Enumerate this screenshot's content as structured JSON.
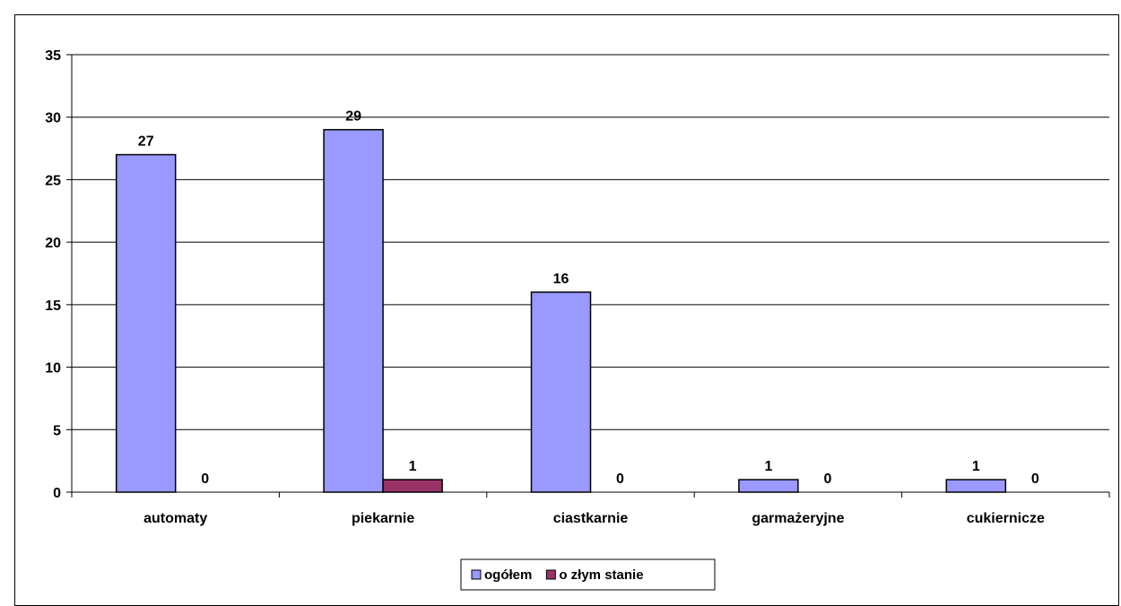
{
  "chart_data": {
    "type": "bar",
    "title": "",
    "xlabel": "",
    "ylabel": "",
    "categories": [
      "automaty",
      "piekarnie",
      "ciastkarnie",
      "garmażeryjne",
      "cukiernicze"
    ],
    "series": [
      {
        "name": "ogółem",
        "values": [
          27,
          29,
          16,
          1,
          1
        ],
        "color": "#9999ff"
      },
      {
        "name": "o złym stanie",
        "values": [
          0,
          1,
          0,
          0,
          0
        ],
        "color": "#993366"
      }
    ],
    "ylim": [
      0,
      35
    ],
    "yticks": [
      0,
      5,
      10,
      15,
      20,
      25,
      30,
      35
    ],
    "grid": true,
    "legend_position": "bottom"
  }
}
